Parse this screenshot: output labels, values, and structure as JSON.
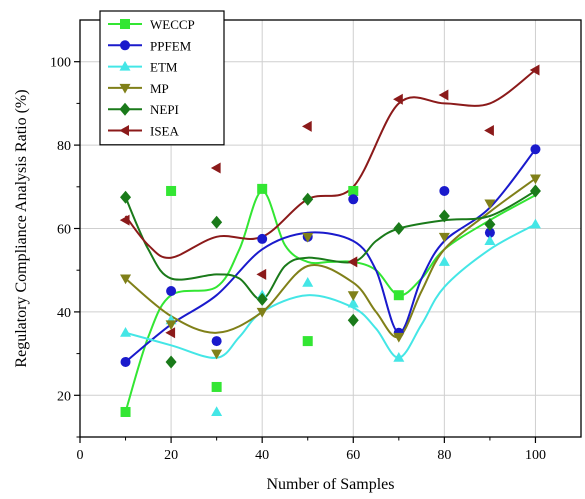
{
  "chart_data": {
    "type": "line",
    "xlabel": "Number of Samples",
    "ylabel": "Regulatory Compliance Analysis Ratio (%)",
    "xlim": [
      0,
      110
    ],
    "ylim": [
      10,
      110
    ],
    "xticks": [
      0,
      20,
      40,
      60,
      80,
      100
    ],
    "yticks": [
      20,
      40,
      60,
      80,
      100
    ],
    "grid": true,
    "legend_position": "top-left",
    "x": [
      10,
      20,
      30,
      40,
      50,
      60,
      70,
      80,
      90,
      100
    ],
    "series": [
      {
        "name": "WECCP",
        "color": "#33e633",
        "marker": "square",
        "values": [
          16,
          69,
          22,
          69.5,
          33,
          69,
          44,
          null,
          null,
          null
        ]
      },
      {
        "name": "PPFEM",
        "color": "#1a1acc",
        "marker": "circle",
        "values": [
          28,
          45,
          33,
          57.5,
          58,
          67,
          35,
          69,
          59,
          79
        ]
      },
      {
        "name": "ETM",
        "color": "#44e6e6",
        "marker": "triangle-up",
        "values": [
          35,
          38,
          16,
          44,
          47,
          42,
          29,
          52,
          57,
          61
        ]
      },
      {
        "name": "MP",
        "color": "#808019",
        "marker": "triangle-down",
        "values": [
          48,
          37,
          30,
          40,
          58,
          44,
          34,
          58,
          66,
          72
        ]
      },
      {
        "name": "NEPI",
        "color": "#1a7a1a",
        "marker": "diamond",
        "values": [
          67.5,
          28,
          61.5,
          43,
          67,
          38,
          60,
          63,
          61,
          69
        ]
      },
      {
        "name": "ISEA",
        "color": "#8b1a1a",
        "marker": "triangle-left",
        "values": [
          62,
          35,
          74.5,
          49,
          84.5,
          52,
          91,
          92,
          83.5,
          98
        ]
      }
    ],
    "curves": [
      {
        "series": "WECCP",
        "points": [
          [
            10,
            16
          ],
          [
            15,
            34
          ],
          [
            20,
            44
          ],
          [
            30,
            46
          ],
          [
            35,
            55
          ],
          [
            40,
            69
          ],
          [
            45,
            56
          ],
          [
            50,
            52
          ],
          [
            55,
            52
          ],
          [
            60,
            52
          ],
          [
            65,
            50
          ],
          [
            70,
            44
          ],
          [
            75,
            48
          ],
          [
            80,
            55
          ],
          [
            90,
            62
          ],
          [
            100,
            68
          ]
        ]
      },
      {
        "series": "PPFEM",
        "points": [
          [
            10,
            28
          ],
          [
            20,
            37
          ],
          [
            30,
            44
          ],
          [
            40,
            55
          ],
          [
            50,
            59
          ],
          [
            60,
            57
          ],
          [
            65,
            50
          ],
          [
            70,
            35
          ],
          [
            75,
            48
          ],
          [
            80,
            57
          ],
          [
            90,
            65
          ],
          [
            100,
            79
          ]
        ]
      },
      {
        "series": "ETM",
        "points": [
          [
            10,
            35
          ],
          [
            20,
            32
          ],
          [
            30,
            29
          ],
          [
            35,
            34
          ],
          [
            40,
            40
          ],
          [
            50,
            44
          ],
          [
            60,
            41
          ],
          [
            65,
            36
          ],
          [
            70,
            29
          ],
          [
            75,
            37
          ],
          [
            80,
            46
          ],
          [
            90,
            55
          ],
          [
            100,
            61
          ]
        ]
      },
      {
        "series": "MP",
        "points": [
          [
            10,
            48
          ],
          [
            20,
            39
          ],
          [
            30,
            35
          ],
          [
            40,
            40
          ],
          [
            50,
            51
          ],
          [
            60,
            47
          ],
          [
            65,
            40
          ],
          [
            70,
            34
          ],
          [
            75,
            45
          ],
          [
            80,
            55
          ],
          [
            90,
            64
          ],
          [
            100,
            72
          ]
        ]
      },
      {
        "series": "NEPI",
        "points": [
          [
            10,
            67.5
          ],
          [
            15,
            55
          ],
          [
            20,
            48
          ],
          [
            30,
            49
          ],
          [
            35,
            48
          ],
          [
            40,
            43
          ],
          [
            45,
            51
          ],
          [
            50,
            53
          ],
          [
            60,
            52
          ],
          [
            65,
            57
          ],
          [
            70,
            60
          ],
          [
            80,
            62
          ],
          [
            90,
            63
          ],
          [
            100,
            69
          ]
        ]
      },
      {
        "series": "ISEA",
        "points": [
          [
            10,
            63
          ],
          [
            15,
            56
          ],
          [
            20,
            53
          ],
          [
            30,
            58
          ],
          [
            40,
            58
          ],
          [
            50,
            67
          ],
          [
            60,
            70
          ],
          [
            70,
            90
          ],
          [
            80,
            90
          ],
          [
            90,
            90
          ],
          [
            100,
            98
          ]
        ]
      }
    ]
  }
}
